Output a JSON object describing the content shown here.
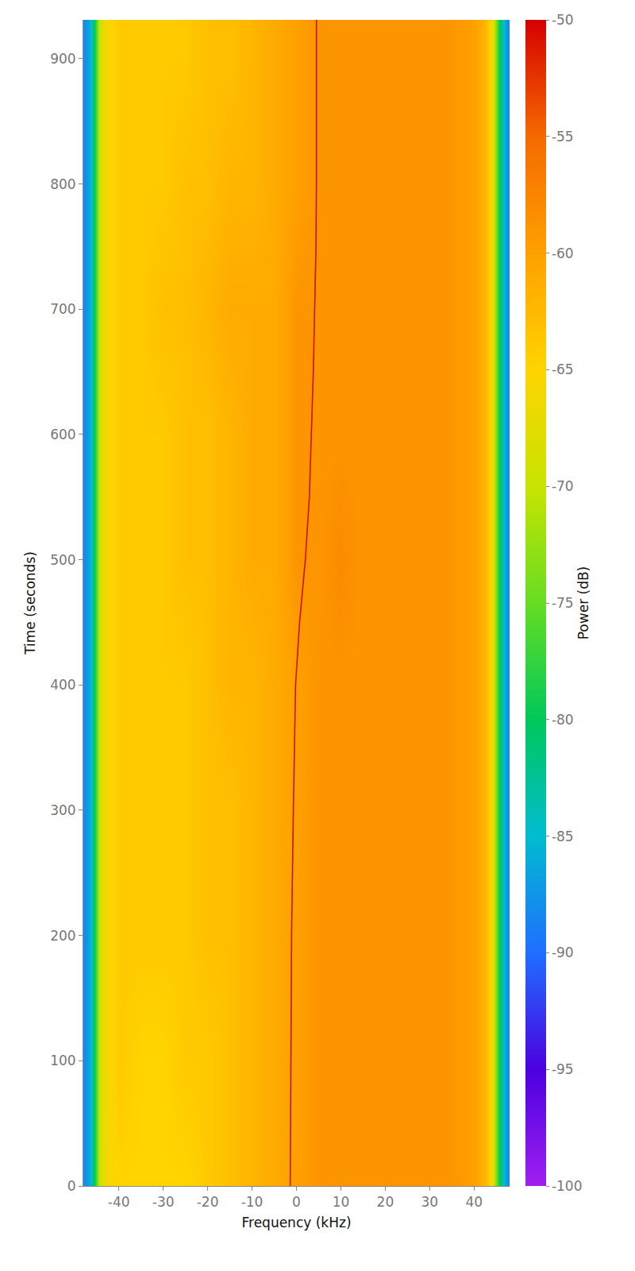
{
  "chart_data": {
    "type": "heatmap",
    "xlabel": "Frequency (kHz)",
    "ylabel": "Time (seconds)",
    "colorbar_label": "Power (dB)",
    "xlim": [
      -48,
      48
    ],
    "xticks": [
      -40,
      -30,
      -20,
      -10,
      0,
      10,
      20,
      30,
      40
    ],
    "ylim": [
      0,
      931
    ],
    "yticks": [
      0,
      100,
      200,
      300,
      400,
      500,
      600,
      700,
      800,
      900
    ],
    "zlim": [
      -100,
      -50
    ],
    "zticks": [
      -100,
      -95,
      -90,
      -85,
      -80,
      -75,
      -70,
      -65,
      -60,
      -55,
      -50
    ],
    "x": [
      -47.5,
      -46.5,
      -45.5,
      -44.5,
      -43,
      -40,
      -35,
      -30,
      -25,
      -20,
      -15,
      -10,
      -5,
      0,
      5,
      10,
      15,
      20,
      25,
      30,
      35,
      40,
      42.5,
      44,
      45,
      46,
      47.5
    ],
    "y": [
      0,
      100,
      200,
      300,
      400,
      500,
      600,
      700,
      800,
      900
    ],
    "z": [
      [
        -88,
        -86,
        -80,
        -70,
        -66,
        -65,
        -65,
        -65,
        -65,
        -64,
        -63,
        -62,
        -61,
        -60,
        -59,
        -59,
        -59,
        -59,
        -59,
        -59,
        -59,
        -60,
        -62,
        -66,
        -74,
        -82,
        -88
      ],
      [
        -88,
        -86,
        -80,
        -70,
        -66,
        -64,
        -65,
        -65,
        -64,
        -64,
        -63,
        -62,
        -61,
        -60,
        -59,
        -59,
        -59,
        -59,
        -59,
        -59,
        -59,
        -60,
        -62,
        -66,
        -74,
        -82,
        -88
      ],
      [
        -88,
        -86,
        -80,
        -70,
        -66,
        -64,
        -64,
        -64,
        -64,
        -63,
        -63,
        -62,
        -61,
        -60,
        -59,
        -59,
        -59,
        -59,
        -59,
        -59,
        -59,
        -60,
        -62,
        -66,
        -74,
        -82,
        -88
      ],
      [
        -88,
        -86,
        -80,
        -70,
        -66,
        -64,
        -64,
        -64,
        -64,
        -63,
        -63,
        -62,
        -61,
        -60,
        -59,
        -59,
        -59,
        -59,
        -59,
        -59,
        -59,
        -60,
        -62,
        -66,
        -74,
        -82,
        -88
      ],
      [
        -88,
        -86,
        -80,
        -70,
        -66,
        -64,
        -64,
        -64,
        -64,
        -63,
        -62,
        -62,
        -61,
        -60,
        -59,
        -59,
        -59,
        -59,
        -59,
        -59,
        -59,
        -60,
        -62,
        -66,
        -74,
        -82,
        -88
      ],
      [
        -88,
        -86,
        -80,
        -70,
        -66,
        -64,
        -64,
        -64,
        -63,
        -63,
        -62,
        -61,
        -61,
        -59,
        -59,
        -58,
        -59,
        -59,
        -59,
        -59,
        -59,
        -60,
        -62,
        -66,
        -74,
        -82,
        -88
      ],
      [
        -88,
        -86,
        -80,
        -70,
        -66,
        -64,
        -64,
        -64,
        -63,
        -63,
        -62,
        -61,
        -61,
        -59,
        -59,
        -59,
        -59,
        -59,
        -59,
        -59,
        -59,
        -60,
        -62,
        -66,
        -74,
        -82,
        -88
      ],
      [
        -88,
        -86,
        -80,
        -70,
        -66,
        -64,
        -64,
        -63,
        -63,
        -62,
        -61,
        -61,
        -61,
        -59,
        -59,
        -59,
        -59,
        -59,
        -59,
        -59,
        -59,
        -60,
        -62,
        -66,
        -74,
        -82,
        -88
      ],
      [
        -88,
        -86,
        -80,
        -70,
        -66,
        -64,
        -64,
        -64,
        -63,
        -63,
        -62,
        -62,
        -61,
        -60,
        -59,
        -59,
        -59,
        -59,
        -59,
        -59,
        -59,
        -60,
        -62,
        -66,
        -74,
        -82,
        -88
      ],
      [
        -88,
        -86,
        -80,
        -70,
        -66,
        -64,
        -64,
        -64,
        -64,
        -63,
        -63,
        -62,
        -61,
        -60,
        -59,
        -59,
        -59,
        -59,
        -59,
        -59,
        -59,
        -60,
        -62,
        -66,
        -74,
        -82,
        -88
      ]
    ],
    "series": [
      {
        "color": "#cc1100",
        "x": [
          -1.4,
          -1.3,
          -1.1,
          -0.7,
          -0.2,
          0.7,
          2.0,
          2.9,
          3.4,
          3.8,
          4.1,
          4.4,
          4.5,
          4.5,
          4.5
        ],
        "y": [
          0,
          100,
          200,
          300,
          400,
          450,
          500,
          550,
          600,
          650,
          700,
          750,
          800,
          900,
          931
        ]
      }
    ]
  }
}
